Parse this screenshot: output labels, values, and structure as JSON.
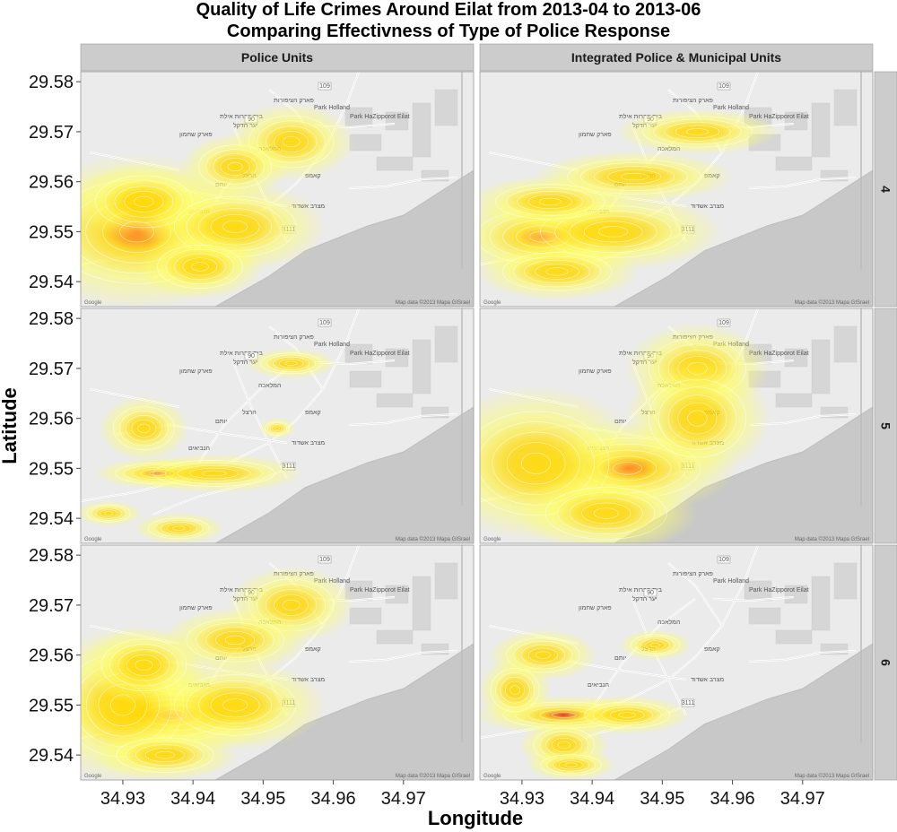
{
  "chart_data": {
    "type": "heatmap",
    "title": "Quality of Life Crimes Around Eilat from 2013-04 to 2013-06",
    "subtitle": "Comparing Effectivness of Type of Police Response",
    "xlabel": "Longitude",
    "ylabel": "Latitude",
    "xlim": [
      34.924,
      34.98
    ],
    "ylim": [
      29.535,
      29.582
    ],
    "x_ticks": [
      "34.93",
      "34.94",
      "34.95",
      "34.96",
      "34.97"
    ],
    "x_tick_values": [
      34.93,
      34.94,
      34.95,
      34.96,
      34.97
    ],
    "y_ticks": [
      "29.54",
      "29.55",
      "29.56",
      "29.57",
      "29.58"
    ],
    "y_tick_values": [
      29.54,
      29.55,
      29.56,
      29.57,
      29.58
    ],
    "columns": [
      "Police Units",
      "Integrated Police & Municipal Units"
    ],
    "rows": [
      "4",
      "5",
      "6"
    ],
    "map_labels": [
      "Park Holland",
      "Park HaZipporot Eilat",
      "פארק הציפורות",
      "בית קברות אילת",
      "יער הדקל",
      "המלאכה",
      "פארק שחמון",
      "הרצל",
      "יותם",
      "קאמפ",
      "מצרב אשדוד",
      "הנביאים"
    ],
    "map_credit": "Map data ©2013 Mapa GISrael",
    "map_logo": "Google",
    "road_shields": [
      "109",
      "90",
      "3111"
    ],
    "colors": {
      "low": "#ffff66",
      "mid": "#ffd700",
      "high": "#ff5a00",
      "peak": "#e8211a",
      "contour": "#ffffff"
    },
    "panels": [
      {
        "column": "Police Units",
        "row": "4",
        "hotspots": [
          {
            "lon": 34.932,
            "lat": 29.55,
            "sx": 0.007,
            "sy": 0.006,
            "w": 1.0
          },
          {
            "lon": 34.933,
            "lat": 29.556,
            "sx": 0.004,
            "sy": 0.003,
            "w": 0.7
          },
          {
            "lon": 34.946,
            "lat": 29.551,
            "sx": 0.005,
            "sy": 0.0035,
            "w": 0.85
          },
          {
            "lon": 34.941,
            "lat": 29.543,
            "sx": 0.0035,
            "sy": 0.0025,
            "w": 0.5
          },
          {
            "lon": 34.954,
            "lat": 29.568,
            "sx": 0.0035,
            "sy": 0.003,
            "w": 0.4
          },
          {
            "lon": 34.946,
            "lat": 29.563,
            "sx": 0.003,
            "sy": 0.0025,
            "w": 0.3
          }
        ]
      },
      {
        "column": "Integrated Police & Municipal Units",
        "row": "4",
        "hotspots": [
          {
            "lon": 34.933,
            "lat": 29.549,
            "sx": 0.0055,
            "sy": 0.0032,
            "w": 1.0
          },
          {
            "lon": 34.943,
            "lat": 29.55,
            "sx": 0.006,
            "sy": 0.003,
            "w": 0.75
          },
          {
            "lon": 34.935,
            "lat": 29.542,
            "sx": 0.0045,
            "sy": 0.0022,
            "w": 0.55
          },
          {
            "lon": 34.955,
            "lat": 29.57,
            "sx": 0.0045,
            "sy": 0.0018,
            "w": 0.55
          },
          {
            "lon": 34.946,
            "lat": 29.561,
            "sx": 0.0055,
            "sy": 0.002,
            "w": 0.4
          },
          {
            "lon": 34.934,
            "lat": 29.556,
            "sx": 0.0045,
            "sy": 0.002,
            "w": 0.35
          }
        ]
      },
      {
        "column": "Police Units",
        "row": "5",
        "hotspots": [
          {
            "lon": 34.935,
            "lat": 29.549,
            "sx": 0.0035,
            "sy": 0.0012,
            "w": 1.3
          },
          {
            "lon": 34.943,
            "lat": 29.549,
            "sx": 0.005,
            "sy": 0.0015,
            "w": 0.35
          },
          {
            "lon": 34.933,
            "lat": 29.558,
            "sx": 0.0025,
            "sy": 0.0025,
            "w": 0.4
          },
          {
            "lon": 34.938,
            "lat": 29.538,
            "sx": 0.0025,
            "sy": 0.0012,
            "w": 0.6
          },
          {
            "lon": 34.928,
            "lat": 29.541,
            "sx": 0.0018,
            "sy": 0.001,
            "w": 0.4
          },
          {
            "lon": 34.954,
            "lat": 29.571,
            "sx": 0.0025,
            "sy": 0.0012,
            "w": 0.45
          },
          {
            "lon": 34.952,
            "lat": 29.558,
            "sx": 0.001,
            "sy": 0.0008,
            "w": 0.3
          }
        ]
      },
      {
        "column": "Integrated Police & Municipal Units",
        "row": "5",
        "hotspots": [
          {
            "lon": 34.945,
            "lat": 29.55,
            "sx": 0.006,
            "sy": 0.0035,
            "w": 1.0
          },
          {
            "lon": 34.932,
            "lat": 29.551,
            "sx": 0.006,
            "sy": 0.006,
            "w": 0.6
          },
          {
            "lon": 34.955,
            "lat": 29.57,
            "sx": 0.004,
            "sy": 0.0035,
            "w": 0.7
          },
          {
            "lon": 34.955,
            "lat": 29.56,
            "sx": 0.004,
            "sy": 0.0045,
            "w": 0.5
          },
          {
            "lon": 34.942,
            "lat": 29.541,
            "sx": 0.005,
            "sy": 0.003,
            "w": 0.45
          }
        ]
      },
      {
        "column": "Police Units",
        "row": "6",
        "hotspots": [
          {
            "lon": 34.937,
            "lat": 29.548,
            "sx": 0.006,
            "sy": 0.003,
            "w": 1.1
          },
          {
            "lon": 34.93,
            "lat": 29.55,
            "sx": 0.005,
            "sy": 0.006,
            "w": 0.7
          },
          {
            "lon": 34.946,
            "lat": 29.55,
            "sx": 0.005,
            "sy": 0.0035,
            "w": 0.5
          },
          {
            "lon": 34.933,
            "lat": 29.558,
            "sx": 0.0035,
            "sy": 0.003,
            "w": 0.45
          },
          {
            "lon": 34.954,
            "lat": 29.57,
            "sx": 0.0035,
            "sy": 0.003,
            "w": 0.5
          },
          {
            "lon": 34.946,
            "lat": 29.563,
            "sx": 0.004,
            "sy": 0.0025,
            "w": 0.3
          },
          {
            "lon": 34.936,
            "lat": 29.54,
            "sx": 0.004,
            "sy": 0.002,
            "w": 0.35
          }
        ]
      },
      {
        "column": "Integrated Police & Municipal Units",
        "row": "6",
        "hotspots": [
          {
            "lon": 34.936,
            "lat": 29.548,
            "sx": 0.005,
            "sy": 0.0015,
            "w": 1.2
          },
          {
            "lon": 34.945,
            "lat": 29.548,
            "sx": 0.0035,
            "sy": 0.0015,
            "w": 0.6
          },
          {
            "lon": 34.933,
            "lat": 29.56,
            "sx": 0.003,
            "sy": 0.002,
            "w": 0.55
          },
          {
            "lon": 34.936,
            "lat": 29.542,
            "sx": 0.0025,
            "sy": 0.002,
            "w": 0.5
          },
          {
            "lon": 34.937,
            "lat": 29.538,
            "sx": 0.0025,
            "sy": 0.0012,
            "w": 0.45
          },
          {
            "lon": 34.949,
            "lat": 29.562,
            "sx": 0.002,
            "sy": 0.0012,
            "w": 0.35
          },
          {
            "lon": 34.929,
            "lat": 29.553,
            "sx": 0.002,
            "sy": 0.0025,
            "w": 0.3
          }
        ]
      }
    ]
  }
}
